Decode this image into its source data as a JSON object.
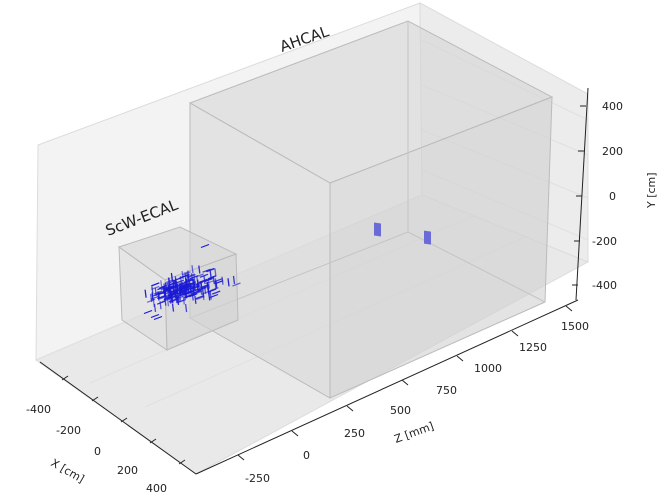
{
  "chart_data": {
    "type": "scatter",
    "projection": "3d",
    "detectors": [
      {
        "name": "ScW-ECAL",
        "color": "#c8c8c8"
      },
      {
        "name": "AHCAL",
        "color": "#c8c8c8"
      }
    ],
    "hits_color": "#1a1ad6",
    "axes": {
      "x": {
        "label": "X [cm]",
        "ticks": [
          "-400",
          "-200",
          "0",
          "200",
          "400"
        ]
      },
      "z": {
        "label": "Z [mm]",
        "ticks": [
          "-250",
          "0",
          "250",
          "500",
          "750",
          "1000",
          "1250",
          "1500"
        ]
      },
      "y": {
        "label": "Y [cm]",
        "ticks": [
          "400",
          "200",
          "0",
          "-200",
          "-400"
        ]
      }
    },
    "grid": true
  }
}
